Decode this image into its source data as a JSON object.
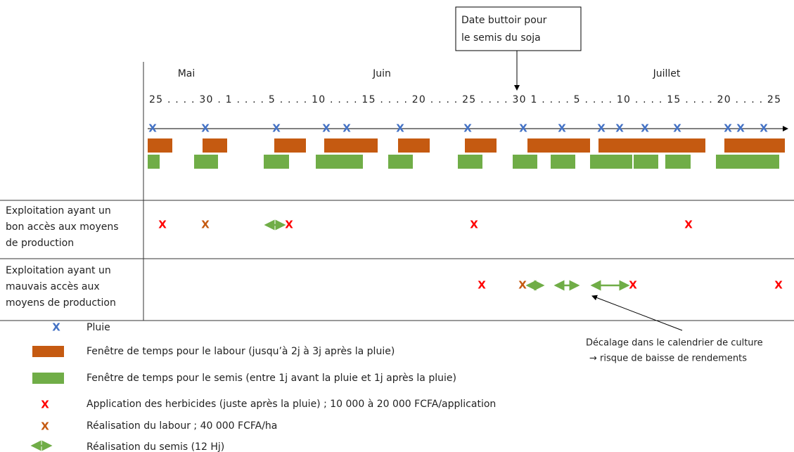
{
  "callout": {
    "lines": [
      "Date buttoir pour",
      "le semis du soja"
    ]
  },
  "months": [
    "Mai",
    "Juin",
    "Juillet"
  ],
  "days": "25 . . . . 30 .   1 . . . . 5 . . . . 10 . . . . 15 . . . . 20 . . . . 25 . . . . 30   1 . . . . 5 . . . . 10 . . . . 15 . . . . 20 . . . . 25",
  "symbols": {
    "cross": "X"
  },
  "rows": [
    {
      "label": [
        "Exploitation ayant un",
        "bon accès aux moyens",
        "de production"
      ]
    },
    {
      "label": [
        "Exploitation ayant un",
        "mauvais accès aux",
        "moyens de production"
      ]
    }
  ],
  "annotation": {
    "lines": [
      "Décalage dans le calendrier de culture",
      "→ risque de baisse de rendements"
    ]
  },
  "legend": [
    "Pluie",
    "Fenêtre de temps pour le labour (jusqu’à 2j à 3j après la pluie)",
    "Fenêtre de temps pour le semis (entre 1j avant la pluie et 1j après la pluie)",
    "Application des herbicides (juste après la pluie) ; 10 000 à 20 000 FCFA/application",
    "Réalisation du labour ; 40 000 FCFA/ha",
    "Réalisation du semis (12 Hj)"
  ]
}
